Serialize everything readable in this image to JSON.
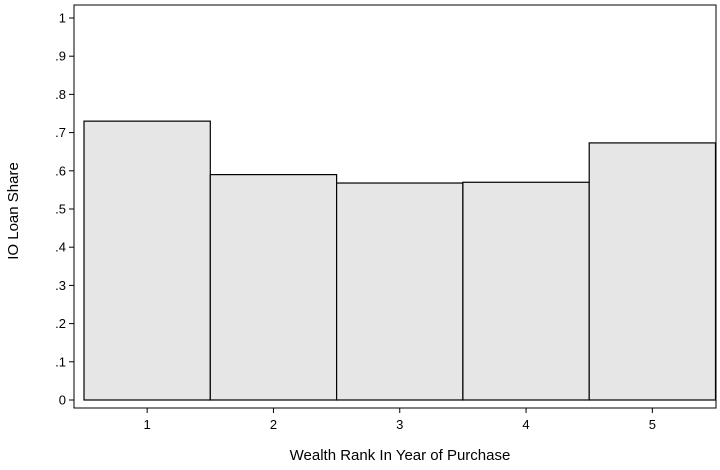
{
  "chart_data": {
    "type": "bar",
    "categories": [
      "1",
      "2",
      "3",
      "4",
      "5"
    ],
    "values": [
      0.73,
      0.59,
      0.568,
      0.57,
      0.673
    ],
    "title": "",
    "xlabel": "Wealth Rank In Year of Purchase",
    "ylabel": "IO Loan Share",
    "ylim": [
      0,
      1
    ],
    "yticks": [
      0,
      0.1,
      0.2,
      0.3,
      0.4,
      0.5,
      0.6,
      0.7,
      0.8,
      0.9,
      1
    ],
    "ytick_labels": [
      "0",
      ".1",
      ".2",
      ".3",
      ".4",
      ".5",
      ".6",
      ".7",
      ".8",
      ".9",
      "1"
    ],
    "grid": false,
    "legend": "none",
    "colors": {
      "bar_fill": "#e6e6e6",
      "bar_edge": "#000000"
    }
  }
}
